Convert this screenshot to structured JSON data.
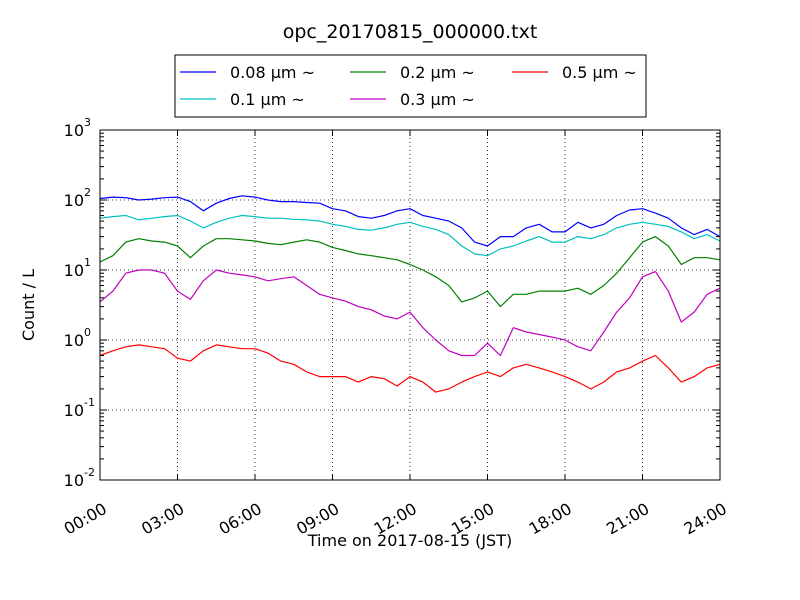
{
  "chart_data": {
    "type": "line",
    "title": "opc_20170815_000000.txt",
    "xlabel": "Time on 2017-08-15 (JST)",
    "ylabel": "Count / L",
    "x_unit": "time of day (hours)",
    "xlim": [
      0,
      24
    ],
    "ylim": [
      0.01,
      1000
    ],
    "yscale": "log",
    "grid": true,
    "legend_placement": "top, above plot",
    "x_ticks": [
      "00:00",
      "03:00",
      "06:00",
      "09:00",
      "12:00",
      "15:00",
      "18:00",
      "21:00",
      "24:00"
    ],
    "y_ticks": [
      {
        "base": "10",
        "exp": "-2"
      },
      {
        "base": "10",
        "exp": "-1"
      },
      {
        "base": "10",
        "exp": "0"
      },
      {
        "base": "10",
        "exp": "1"
      },
      {
        "base": "10",
        "exp": "2"
      },
      {
        "base": "10",
        "exp": "3"
      }
    ],
    "series": [
      {
        "name": "0.08 μm ~",
        "color": "#0000ff",
        "x": [
          0,
          0.5,
          1,
          1.5,
          2,
          2.5,
          3,
          3.5,
          4,
          4.5,
          5,
          5.5,
          6,
          6.5,
          7,
          7.5,
          8,
          8.5,
          9,
          9.5,
          10,
          10.5,
          11,
          11.5,
          12,
          12.5,
          13,
          13.5,
          14,
          14.5,
          15,
          15.5,
          16,
          16.5,
          17,
          17.5,
          18,
          18.5,
          19,
          19.5,
          20,
          20.5,
          21,
          21.5,
          22,
          22.5,
          23,
          23.5,
          24
        ],
        "values": [
          105,
          110,
          108,
          100,
          103,
          108,
          110,
          95,
          70,
          90,
          105,
          115,
          110,
          100,
          95,
          95,
          92,
          90,
          75,
          70,
          58,
          55,
          60,
          70,
          75,
          60,
          55,
          50,
          40,
          25,
          22,
          30,
          30,
          40,
          45,
          35,
          35,
          48,
          40,
          45,
          60,
          72,
          75,
          65,
          55,
          40,
          32,
          38,
          30
        ]
      },
      {
        "name": "0.1 μm ~",
        "color": "#00bfbf",
        "x": [
          0,
          0.5,
          1,
          1.5,
          2,
          2.5,
          3,
          3.5,
          4,
          4.5,
          5,
          5.5,
          6,
          6.5,
          7,
          7.5,
          8,
          8.5,
          9,
          9.5,
          10,
          10.5,
          11,
          11.5,
          12,
          12.5,
          13,
          13.5,
          14,
          14.5,
          15,
          15.5,
          16,
          16.5,
          17,
          17.5,
          18,
          18.5,
          19,
          19.5,
          20,
          20.5,
          21,
          21.5,
          22,
          22.5,
          23,
          23.5,
          24
        ],
        "values": [
          55,
          58,
          60,
          52,
          55,
          58,
          60,
          50,
          40,
          48,
          55,
          60,
          58,
          55,
          55,
          53,
          52,
          50,
          45,
          42,
          38,
          37,
          40,
          45,
          48,
          42,
          38,
          32,
          22,
          17,
          16,
          20,
          22,
          26,
          30,
          25,
          25,
          30,
          28,
          32,
          40,
          45,
          48,
          45,
          42,
          35,
          28,
          32,
          26
        ]
      },
      {
        "name": "0.2 μm ~",
        "color": "#008000",
        "x": [
          0,
          0.5,
          1,
          1.5,
          2,
          2.5,
          3,
          3.5,
          4,
          4.5,
          5,
          5.5,
          6,
          6.5,
          7,
          7.5,
          8,
          8.5,
          9,
          9.5,
          10,
          10.5,
          11,
          11.5,
          12,
          12.5,
          13,
          13.5,
          14,
          14.5,
          15,
          15.5,
          16,
          16.5,
          17,
          17.5,
          18,
          18.5,
          19,
          19.5,
          20,
          20.5,
          21,
          21.5,
          22,
          22.5,
          23,
          23.5,
          24
        ],
        "values": [
          13,
          16,
          25,
          28,
          26,
          25,
          22,
          15,
          22,
          28,
          28,
          27,
          26,
          24,
          23,
          25,
          27,
          25,
          21,
          19,
          17,
          16,
          15,
          14,
          12,
          10,
          8,
          6,
          3.5,
          4,
          5,
          3,
          4.5,
          4.5,
          5,
          5,
          5,
          5.5,
          4.5,
          6,
          9,
          15,
          25,
          30,
          22,
          12,
          15,
          15,
          14
        ]
      },
      {
        "name": "0.3 μm ~",
        "color": "#bf00bf",
        "x": [
          0,
          0.5,
          1,
          1.5,
          2,
          2.5,
          3,
          3.5,
          4,
          4.5,
          5,
          5.5,
          6,
          6.5,
          7,
          7.5,
          8,
          8.5,
          9,
          9.5,
          10,
          10.5,
          11,
          11.5,
          12,
          12.5,
          13,
          13.5,
          14,
          14.5,
          15,
          15.5,
          16,
          16.5,
          17,
          17.5,
          18,
          18.5,
          19,
          19.5,
          20,
          20.5,
          21,
          21.5,
          22,
          22.5,
          23,
          23.5,
          24
        ],
        "values": [
          3.5,
          5,
          9,
          10,
          10,
          9,
          5,
          3.8,
          7,
          10,
          9,
          8.5,
          8,
          7,
          7.5,
          8,
          6,
          4.5,
          4,
          3.6,
          3,
          2.7,
          2.2,
          2,
          2.5,
          1.5,
          1,
          0.7,
          0.6,
          0.6,
          0.9,
          0.6,
          1.5,
          1.3,
          1.2,
          1.1,
          1,
          0.8,
          0.7,
          1.3,
          2.5,
          4,
          8,
          9.5,
          5,
          1.8,
          2.5,
          4.5,
          5.5
        ]
      },
      {
        "name": "0.5 μm ~",
        "color": "#ff0000",
        "x": [
          0,
          0.5,
          1,
          1.5,
          2,
          2.5,
          3,
          3.5,
          4,
          4.5,
          5,
          5.5,
          6,
          6.5,
          7,
          7.5,
          8,
          8.5,
          9,
          9.5,
          10,
          10.5,
          11,
          11.5,
          12,
          12.5,
          13,
          13.5,
          14,
          14.5,
          15,
          15.5,
          16,
          16.5,
          17,
          17.5,
          18,
          18.5,
          19,
          19.5,
          20,
          20.5,
          21,
          21.5,
          22,
          22.5,
          23,
          23.5,
          24
        ],
        "values": [
          0.6,
          0.7,
          0.8,
          0.85,
          0.8,
          0.75,
          0.55,
          0.5,
          0.7,
          0.85,
          0.8,
          0.75,
          0.75,
          0.65,
          0.5,
          0.45,
          0.35,
          0.3,
          0.3,
          0.3,
          0.25,
          0.3,
          0.28,
          0.22,
          0.3,
          0.25,
          0.18,
          0.2,
          0.25,
          0.3,
          0.35,
          0.3,
          0.4,
          0.45,
          0.4,
          0.35,
          0.3,
          0.25,
          0.2,
          0.25,
          0.35,
          0.4,
          0.5,
          0.6,
          0.4,
          0.25,
          0.3,
          0.4,
          0.45
        ]
      }
    ]
  }
}
